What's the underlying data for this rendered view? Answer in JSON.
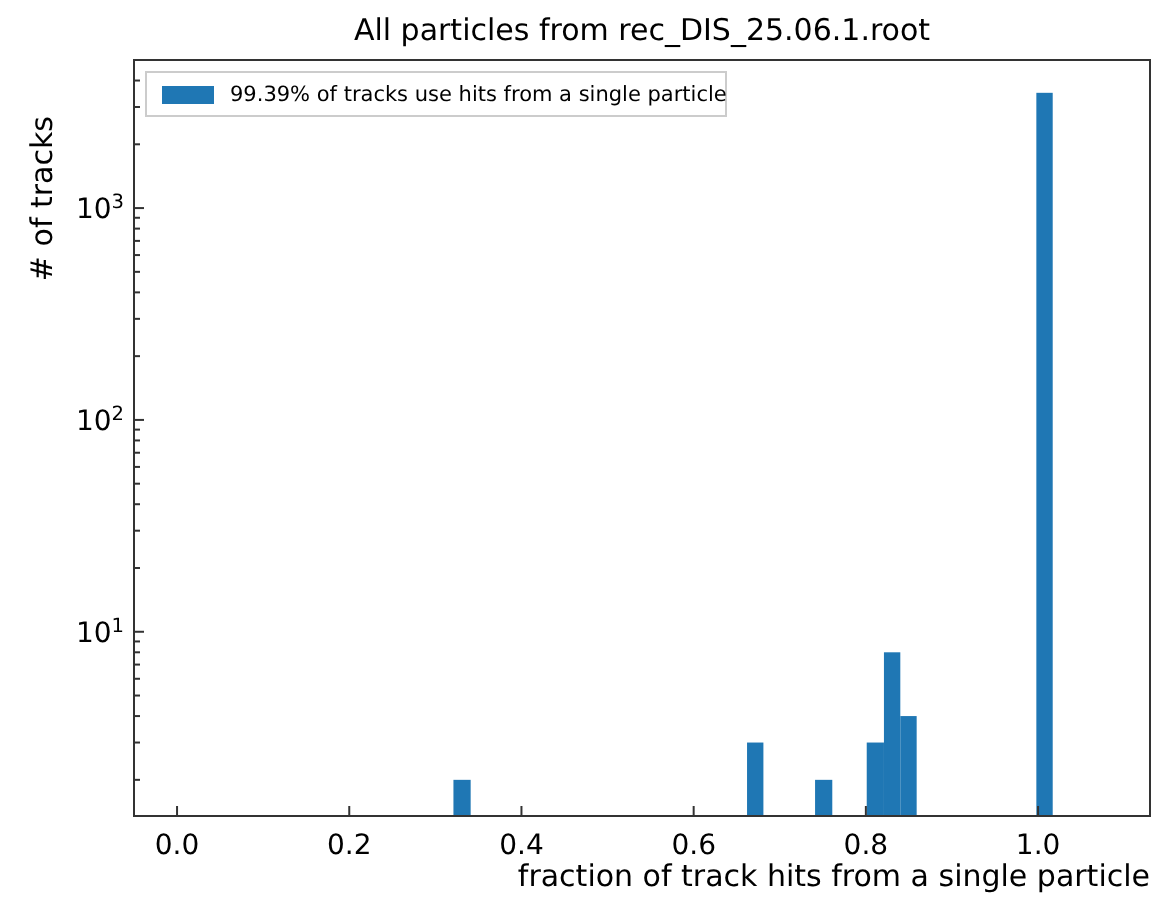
{
  "chart_data": {
    "type": "histogram",
    "title": "All particles from rec_DIS_25.06.1.root",
    "xlabel": "fraction of track hits from a single particle",
    "ylabel": "# of tracks",
    "bins": [
      0.321,
      0.341,
      0.662,
      0.681,
      0.741,
      0.761,
      0.801,
      0.821,
      0.84,
      0.859,
      0.998,
      1.017
    ],
    "series": [
      {
        "name": "99.39% of tracks use hits from a single particle",
        "color": "#1f77b4",
        "values": [
          2,
          null,
          3,
          null,
          2,
          null,
          3,
          8,
          4,
          null,
          3500
        ]
      }
    ],
    "xlim": [
      -0.05,
      1.13
    ],
    "xticks": [
      {
        "value": 0,
        "label": "0.0"
      },
      {
        "value": 0.2,
        "label": "0.2"
      },
      {
        "value": 0.4,
        "label": "0.4"
      },
      {
        "value": 0.6,
        "label": "0.6"
      },
      {
        "value": 0.8,
        "label": "0.8"
      },
      {
        "value": 1,
        "label": "1.0"
      }
    ],
    "ylim": [
      1.35,
      5000
    ],
    "yticks": [
      {
        "value": 2,
        "label": null
      },
      {
        "value": 3,
        "label": null
      },
      {
        "value": 4,
        "label": null
      },
      {
        "value": 5,
        "label": null
      },
      {
        "value": 6,
        "label": null
      },
      {
        "value": 7,
        "label": null
      },
      {
        "value": 8,
        "label": null
      },
      {
        "value": 9,
        "label": null
      },
      {
        "value": 10,
        "label": "10$^{1}$"
      },
      {
        "value": 20,
        "label": null
      },
      {
        "value": 30,
        "label": null
      },
      {
        "value": 40,
        "label": null
      },
      {
        "value": 50,
        "label": null
      },
      {
        "value": 60,
        "label": null
      },
      {
        "value": 70,
        "label": null
      },
      {
        "value": 80,
        "label": null
      },
      {
        "value": 90,
        "label": null
      },
      {
        "value": 100,
        "label": "10$^{2}$"
      },
      {
        "value": 200,
        "label": null
      },
      {
        "value": 300,
        "label": null
      },
      {
        "value": 400,
        "label": null
      },
      {
        "value": 500,
        "label": null
      },
      {
        "value": 600,
        "label": null
      },
      {
        "value": 700,
        "label": null
      },
      {
        "value": 800,
        "label": null
      },
      {
        "value": 900,
        "label": null
      },
      {
        "value": 1000,
        "label": "10$^{3}$"
      },
      {
        "value": 2000,
        "label": null
      },
      {
        "value": 3000,
        "label": null
      },
      {
        "value": 4000,
        "label": null
      }
    ],
    "log": "y",
    "grid": false,
    "legend": "top left"
  }
}
